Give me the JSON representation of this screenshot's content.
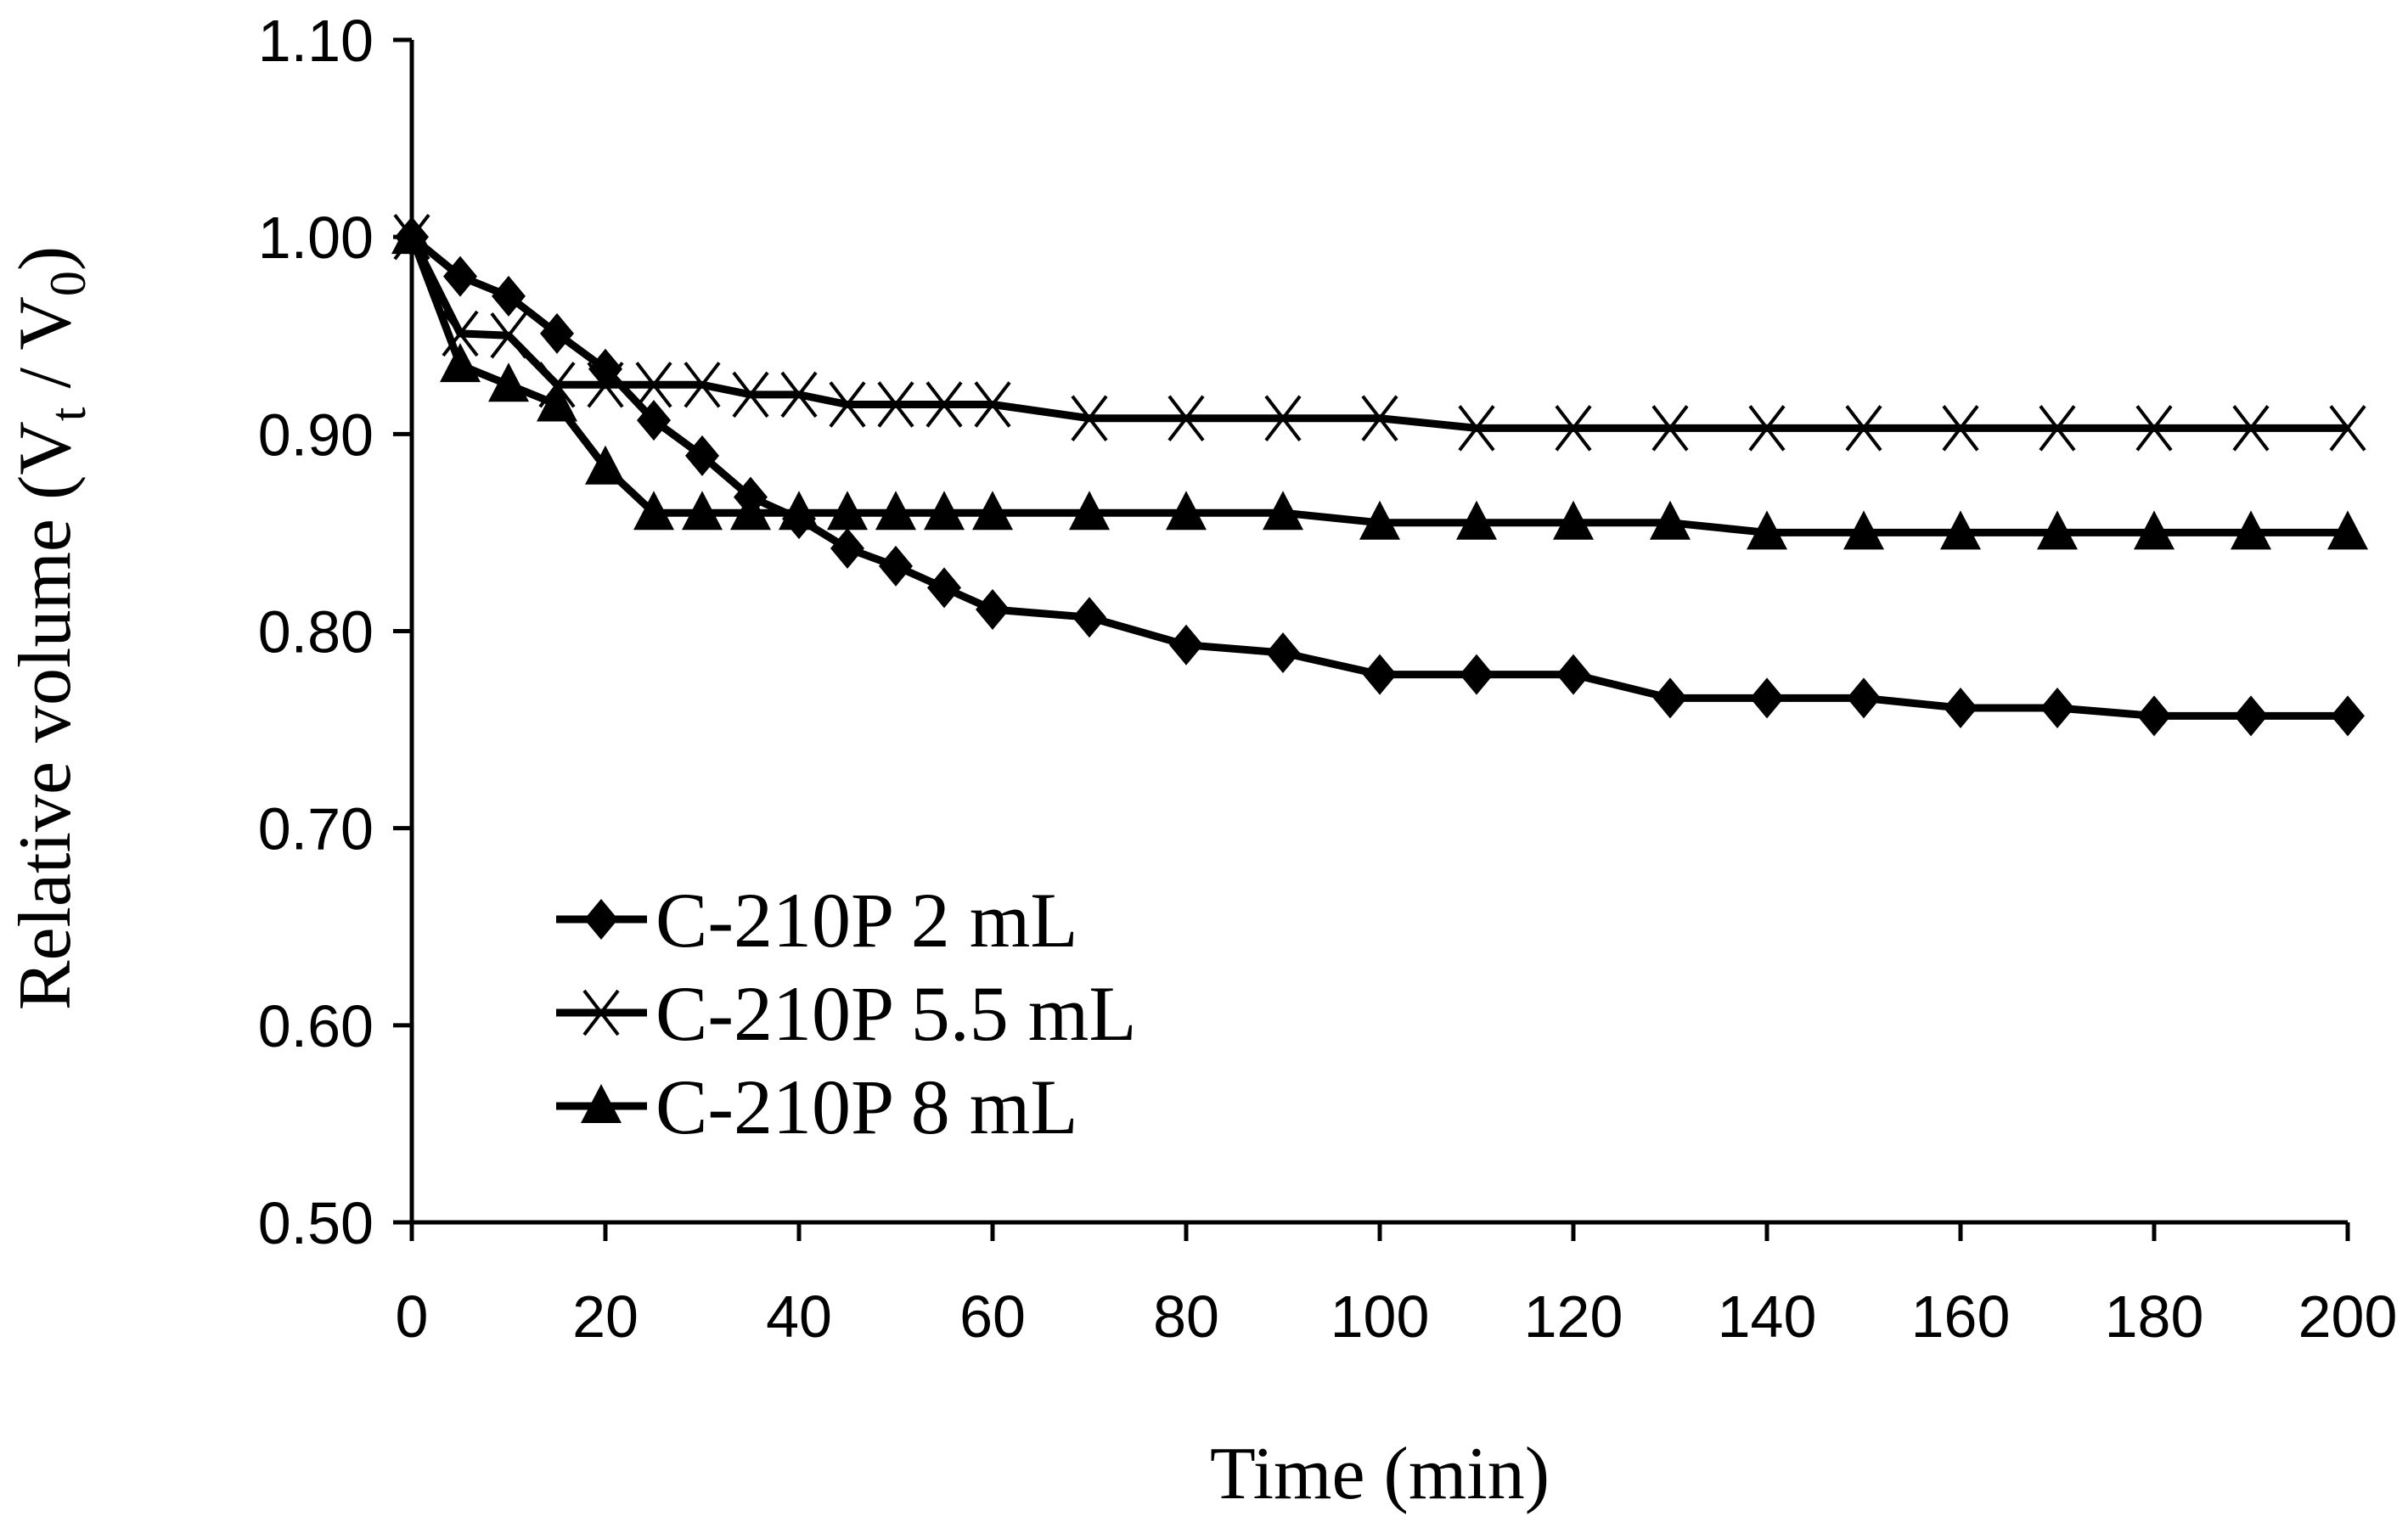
{
  "chart_data": {
    "type": "line",
    "title": "",
    "xlabel": "Time (min)",
    "ylabel_parts": {
      "prefix": "Relative volume (V",
      "sub1": "t",
      "mid": " / V",
      "sub2": "0",
      "suffix": ")"
    },
    "xlim": [
      0,
      200
    ],
    "ylim": [
      0.5,
      1.1
    ],
    "xticks": [
      0,
      20,
      40,
      60,
      80,
      100,
      120,
      140,
      160,
      180,
      200
    ],
    "yticks": [
      "0.50",
      "0.60",
      "0.70",
      "0.80",
      "0.90",
      "1.00",
      "1.10"
    ],
    "grid": false,
    "legend_position": "lower-left",
    "series": [
      {
        "name": "C-210P 2 mL",
        "marker": "diamond",
        "x": [
          0,
          5,
          10,
          15,
          20,
          25,
          30,
          35,
          40,
          45,
          50,
          55,
          60,
          70,
          80,
          90,
          100,
          110,
          120,
          130,
          140,
          150,
          160,
          170,
          180,
          190,
          200
        ],
        "y": [
          1.0,
          0.98,
          0.97,
          0.951,
          0.933,
          0.907,
          0.889,
          0.868,
          0.857,
          0.842,
          0.833,
          0.822,
          0.811,
          0.807,
          0.793,
          0.789,
          0.778,
          0.778,
          0.778,
          0.766,
          0.766,
          0.766,
          0.761,
          0.761,
          0.757,
          0.757,
          0.757
        ]
      },
      {
        "name": "C-210P 5.5 mL",
        "marker": "x",
        "x": [
          0,
          5,
          10,
          15,
          20,
          25,
          30,
          35,
          40,
          45,
          50,
          55,
          60,
          70,
          80,
          90,
          100,
          110,
          120,
          130,
          140,
          150,
          160,
          170,
          180,
          190,
          200
        ],
        "y": [
          1.0,
          0.951,
          0.95,
          0.925,
          0.925,
          0.925,
          0.925,
          0.92,
          0.92,
          0.915,
          0.915,
          0.915,
          0.915,
          0.908,
          0.908,
          0.908,
          0.908,
          0.903,
          0.903,
          0.903,
          0.903,
          0.903,
          0.903,
          0.903,
          0.903,
          0.903,
          0.903
        ]
      },
      {
        "name": "C-210P 8 mL",
        "marker": "triangle",
        "x": [
          0,
          5,
          10,
          15,
          20,
          25,
          30,
          35,
          40,
          45,
          50,
          55,
          60,
          70,
          80,
          90,
          100,
          110,
          120,
          130,
          140,
          150,
          160,
          170,
          180,
          190,
          200
        ],
        "y": [
          1.0,
          0.935,
          0.925,
          0.915,
          0.883,
          0.86,
          0.86,
          0.86,
          0.86,
          0.86,
          0.86,
          0.86,
          0.86,
          0.86,
          0.86,
          0.86,
          0.855,
          0.855,
          0.855,
          0.855,
          0.85,
          0.85,
          0.85,
          0.85,
          0.85,
          0.85,
          0.85
        ]
      }
    ]
  }
}
